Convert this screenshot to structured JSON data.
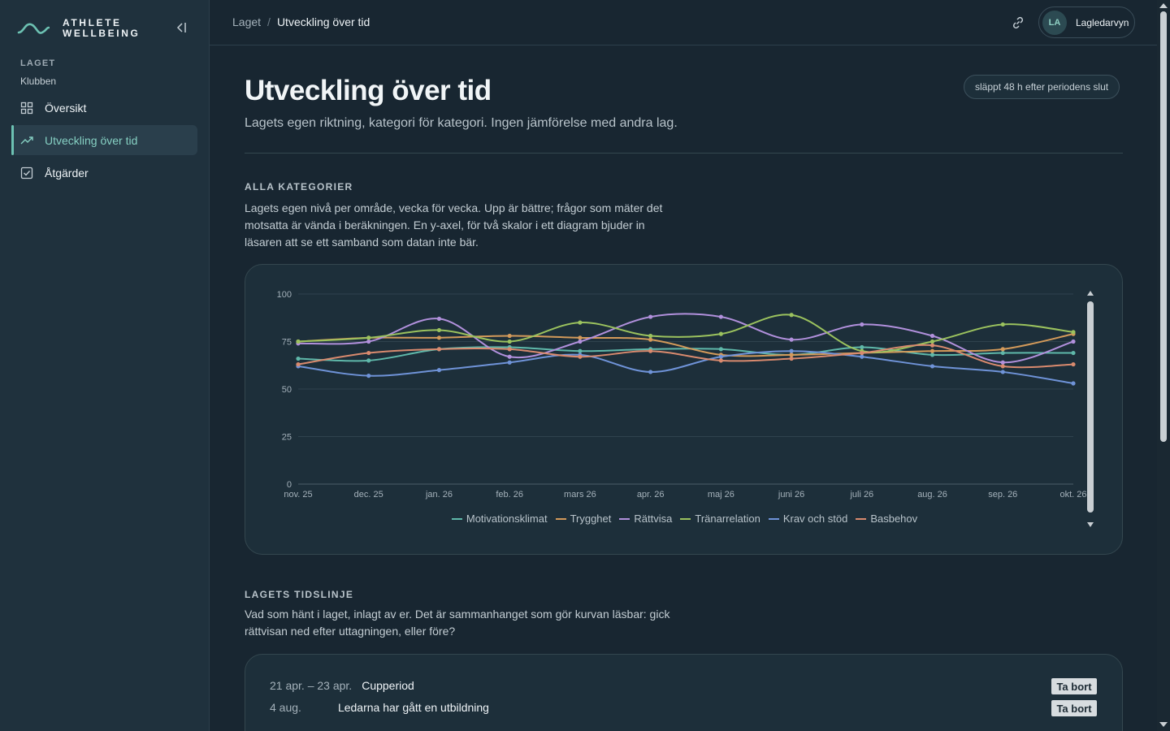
{
  "brand": {
    "line1": "ATHLETE",
    "line2": "WELLBEING"
  },
  "sidebar": {
    "section_label": "LAGET",
    "section_sub": "Klubben",
    "items": [
      {
        "label": "Översikt",
        "icon": "grid-icon"
      },
      {
        "label": "Utveckling över tid",
        "icon": "trend-icon"
      },
      {
        "label": "Åtgärder",
        "icon": "checkbox-icon"
      }
    ]
  },
  "header": {
    "breadcrumb": {
      "parent": "Laget",
      "separator": "/",
      "current": "Utveckling över tid"
    },
    "user": {
      "initials": "LA",
      "name": "Lagledarvyn"
    }
  },
  "page": {
    "title": "Utveckling över tid",
    "subtitle": "Lagets egen riktning, kategori för kategori. Ingen jämförelse med andra lag.",
    "release_badge": "släppt 48 h efter periodens slut"
  },
  "all_categories": {
    "label": "ALLA KATEGORIER",
    "description": "Lagets egen nivå per område, vecka för vecka. Upp är bättre; frågor som mäter det motsatta är vända i beräkningen. En y-axel, för två skalor i ett diagram bjuder in läsaren att se ett samband som datan inte bär."
  },
  "chart_data": {
    "type": "line",
    "categories": [
      "nov. 25",
      "dec. 25",
      "jan. 26",
      "feb. 26",
      "mars 26",
      "apr. 26",
      "maj 26",
      "juni 26",
      "juli 26",
      "aug. 26",
      "sep. 26",
      "okt. 26"
    ],
    "ylim": [
      0,
      100
    ],
    "yticks": [
      0,
      25,
      50,
      75,
      100
    ],
    "grid": true,
    "legend_position": "bottom",
    "series": [
      {
        "name": "Motivationsklimat",
        "color": "#5fb8aa",
        "values": [
          66,
          65,
          71,
          72,
          70,
          71,
          71,
          68,
          72,
          68,
          69,
          69
        ]
      },
      {
        "name": "Trygghet",
        "color": "#d39a5a",
        "values": [
          75,
          77,
          77,
          78,
          77,
          76,
          68,
          68,
          69,
          70,
          71,
          79
        ]
      },
      {
        "name": "Rättvisa",
        "color": "#b190dc",
        "values": [
          74,
          75,
          87,
          67,
          75,
          88,
          88,
          76,
          84,
          78,
          64,
          75
        ]
      },
      {
        "name": "Tränarrelation",
        "color": "#9bc25e",
        "values": [
          75,
          77,
          81,
          75,
          85,
          78,
          79,
          89,
          70,
          75,
          84,
          80
        ]
      },
      {
        "name": "Krav och stöd",
        "color": "#6f93d8",
        "values": [
          62,
          57,
          60,
          64,
          68,
          59,
          67,
          70,
          67,
          62,
          59,
          53
        ]
      },
      {
        "name": "Basbehov",
        "color": "#d98a6e",
        "values": [
          63,
          69,
          71,
          71,
          67,
          70,
          65,
          66,
          69,
          73,
          62,
          63
        ]
      }
    ]
  },
  "timeline": {
    "label": "LAGETS TIDSLINJE",
    "description": "Vad som hänt i laget, inlagt av er. Det är sammanhanget som gör kurvan läsbar: gick rättvisan ned efter uttagningen, eller före?",
    "events": [
      {
        "date": "21 apr. – 23 apr.",
        "title": "Cupperiod",
        "remove_label": "Ta bort"
      },
      {
        "date": "4 aug.",
        "title": "Ledarna har gått en utbildning",
        "remove_label": "Ta bort"
      }
    ]
  }
}
